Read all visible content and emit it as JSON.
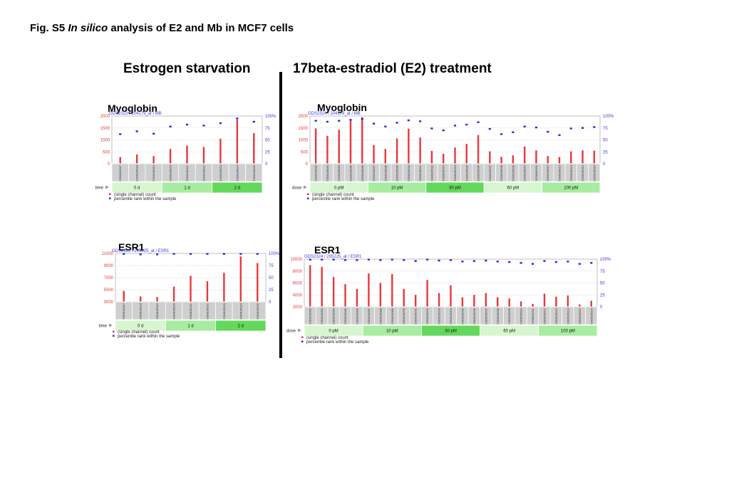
{
  "figure": {
    "title_prefix": "Fig. S5",
    "title_italic": "In silico",
    "title_rest": "analysis of E2 and Mb in MCF7 cells"
  },
  "headings": {
    "left": "Estrogen starvation",
    "right": "17beta-estradiol (E2) treatment"
  },
  "colors": {
    "count_bar": "#e8373b",
    "percentile_marker": "#2b2bd6",
    "left_axis_text": "#e23c3c",
    "right_axis_text": "#3a3ae0",
    "sample_cell": "#cfcfcf",
    "group_colors": [
      "#d6f6d0",
      "#a7eca0",
      "#64d85c"
    ]
  },
  "chart_data": [
    {
      "type": "bar",
      "panel_label": "Myoglobin",
      "gds_header": "GDS2323 / 204179_at / MB",
      "factor_label": "time",
      "categories": [
        "GSM105317",
        "GSM105318",
        "GSM105319",
        "GSM105320",
        "GSM105321",
        "GSM105322",
        "GSM105323",
        "GSM105324",
        "GSM105325"
      ],
      "values": [
        280,
        390,
        320,
        620,
        760,
        700,
        1050,
        1850,
        1280
      ],
      "percentile": [
        62,
        68,
        63,
        78,
        82,
        80,
        85,
        95,
        88
      ],
      "groups": [
        {
          "label": "0 d",
          "count": 3
        },
        {
          "label": "1 d",
          "count": 3
        },
        {
          "label": "2 d",
          "count": 3
        }
      ],
      "y_ticks": [
        "2000",
        "1500",
        "1000",
        "500",
        "0"
      ],
      "ylim": [
        0,
        2000
      ],
      "right_ticks": [
        "100%",
        "75",
        "50",
        "25",
        "0"
      ],
      "legend": [
        "(single channel) count",
        "percentile rank within the sample"
      ]
    },
    {
      "type": "bar",
      "panel_label": "Myoglobin",
      "gds_header": "GDS2324 / 204179_at / MB",
      "factor_label": "dose",
      "categories": [
        "GSM105282",
        "GSM105283",
        "GSM105284",
        "GSM105285",
        "GSM105286",
        "GSM105287",
        "GSM105288",
        "GSM105289",
        "GSM105290",
        "GSM105291",
        "GSM105292",
        "GSM105293",
        "GSM105294",
        "GSM105295",
        "GSM105296",
        "GSM105297",
        "GSM105298",
        "GSM105299",
        "GSM105310",
        "GSM105311",
        "GSM105312",
        "GSM105313",
        "GSM105314",
        "GSM105315",
        "GSM105316"
      ],
      "values": [
        1480,
        1170,
        1430,
        1800,
        1950,
        780,
        620,
        1060,
        1470,
        1100,
        540,
        420,
        680,
        830,
        1200,
        520,
        290,
        350,
        720,
        560,
        320,
        280,
        520,
        560,
        550
      ],
      "percentile": [
        90,
        88,
        90,
        92,
        94,
        84,
        78,
        86,
        91,
        89,
        74,
        70,
        80,
        82,
        87,
        73,
        62,
        66,
        78,
        76,
        67,
        60,
        74,
        75,
        77
      ],
      "groups": [
        {
          "label": "0 pM",
          "count": 5
        },
        {
          "label": "10 pM",
          "count": 5
        },
        {
          "label": "30 pM",
          "count": 5
        },
        {
          "label": "60 pM",
          "count": 5
        },
        {
          "label": "100 pM",
          "count": 5
        }
      ],
      "y_ticks": [
        "2000",
        "1500",
        "1000",
        "500",
        "0"
      ],
      "ylim": [
        0,
        2000
      ],
      "right_ticks": [
        "100%",
        "75",
        "50",
        "25",
        "0"
      ],
      "legend": [
        "(single channel) count",
        "percentile rank within the sample"
      ]
    },
    {
      "type": "bar",
      "panel_label": "ESR1",
      "gds_header": "GDS2323 / 205225_at / ESR1",
      "factor_label": "time",
      "categories": [
        "GSM105317",
        "GSM105318",
        "GSM105319",
        "GSM105320",
        "GSM105321",
        "GSM105322",
        "GSM105323",
        "GSM105324",
        "GSM105325"
      ],
      "values": [
        4800,
        3900,
        3800,
        5500,
        7300,
        6400,
        7800,
        10500,
        9400
      ],
      "percentile": [
        99,
        98,
        98,
        99,
        99,
        99,
        99,
        99,
        99
      ],
      "groups": [
        {
          "label": "0 d",
          "count": 3
        },
        {
          "label": "1 d",
          "count": 3
        },
        {
          "label": "2 d",
          "count": 3
        }
      ],
      "y_ticks": [
        "11000",
        "9000",
        "7000",
        "5000",
        "3000"
      ],
      "ylim": [
        3000,
        11000
      ],
      "right_ticks": [
        "100%",
        "75",
        "50",
        "25",
        "0"
      ],
      "legend": [
        "(single channel) count",
        "percentile rank within the sample"
      ]
    },
    {
      "type": "bar",
      "panel_label": "ESR1",
      "gds_header": "GDS2324 / 205225_at / ESR1",
      "factor_label": "dose",
      "categories": [
        "GSM105282",
        "GSM105283",
        "GSM105284",
        "GSM105285",
        "GSM105286",
        "GSM105287",
        "GSM105288",
        "GSM105289",
        "GSM105290",
        "GSM105291",
        "GSM105292",
        "GSM105293",
        "GSM105294",
        "GSM105295",
        "GSM105296",
        "GSM105297",
        "GSM105298",
        "GSM105299",
        "GSM105310",
        "GSM105311",
        "GSM105312",
        "GSM105313",
        "GSM105314",
        "GSM105315",
        "GSM105316"
      ],
      "values": [
        9000,
        8700,
        7000,
        5800,
        5000,
        7600,
        6000,
        7500,
        5000,
        4000,
        6500,
        4300,
        5600,
        3600,
        4000,
        4300,
        3600,
        3400,
        2900,
        2500,
        4200,
        3700,
        3900,
        2400,
        3000
      ],
      "percentile": [
        99,
        99,
        99,
        98,
        98,
        99,
        98,
        99,
        98,
        96,
        99,
        97,
        98,
        95,
        96,
        97,
        95,
        94,
        92,
        90,
        96,
        94,
        95,
        90,
        92
      ],
      "groups": [
        {
          "label": "0 pM",
          "count": 5
        },
        {
          "label": "10 pM",
          "count": 5
        },
        {
          "label": "30 pM",
          "count": 5
        },
        {
          "label": "60 pM",
          "count": 5
        },
        {
          "label": "100 pM",
          "count": 5
        }
      ],
      "y_ticks": [
        "10000",
        "8000",
        "6000",
        "4000",
        "2000"
      ],
      "ylim": [
        2000,
        10000
      ],
      "right_ticks": [
        "100%",
        "75",
        "50",
        "25",
        "0"
      ],
      "legend": [
        "(single channel) count",
        "percentile rank within the sample"
      ]
    }
  ]
}
